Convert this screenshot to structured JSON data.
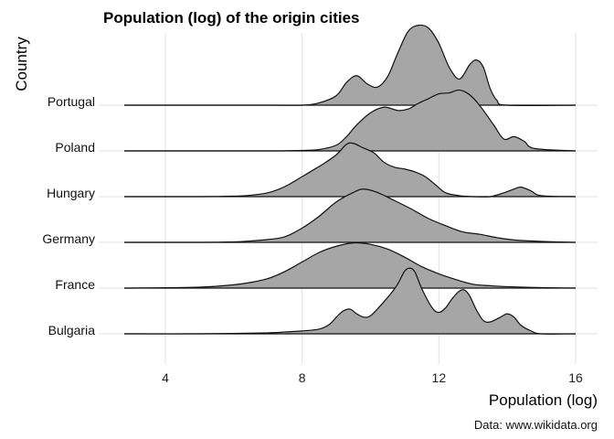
{
  "chart_data": {
    "type": "area",
    "subtype": "ridgeline",
    "title": "Population (log) of the origin cities",
    "xlabel": "Population (log)",
    "ylabel": "Country",
    "caption": "Data: www.wikidata.org",
    "xlim": [
      2.5,
      16.5
    ],
    "x_ticks": [
      4,
      8,
      12,
      16
    ],
    "fill_color": "#a6a6a6",
    "line_color": "#111111",
    "grid": true,
    "categories": [
      "Bulgaria",
      "France",
      "Germany",
      "Hungary",
      "Poland",
      "Portugal"
    ],
    "series": [
      {
        "name": "Bulgaria",
        "x": [
          2.8,
          5.0,
          7.0,
          7.5,
          8.0,
          8.5,
          8.8,
          9.0,
          9.2,
          9.4,
          9.6,
          9.8,
          10.0,
          10.3,
          10.6,
          10.8,
          11.0,
          11.15,
          11.3,
          11.5,
          11.8,
          12.0,
          12.2,
          12.4,
          12.6,
          12.75,
          12.9,
          13.1,
          13.3,
          13.5,
          13.8,
          14.0,
          14.2,
          14.4,
          14.7,
          15.0,
          16.0
        ],
        "values": [
          0.0,
          0.0,
          0.02,
          0.04,
          0.06,
          0.1,
          0.2,
          0.35,
          0.48,
          0.52,
          0.42,
          0.35,
          0.38,
          0.6,
          0.85,
          1.05,
          1.32,
          1.38,
          1.3,
          0.95,
          0.55,
          0.45,
          0.55,
          0.75,
          0.9,
          0.92,
          0.8,
          0.5,
          0.28,
          0.25,
          0.35,
          0.42,
          0.35,
          0.18,
          0.06,
          0.0,
          0.0
        ]
      },
      {
        "name": "France",
        "x": [
          2.8,
          5.0,
          6.0,
          6.5,
          7.0,
          7.5,
          8.0,
          8.5,
          9.0,
          9.5,
          10.0,
          10.5,
          11.0,
          11.5,
          12.0,
          12.5,
          13.0,
          13.5,
          14.0,
          15.0,
          16.0
        ],
        "values": [
          0.0,
          0.02,
          0.07,
          0.12,
          0.2,
          0.35,
          0.55,
          0.75,
          0.88,
          0.95,
          0.92,
          0.82,
          0.65,
          0.45,
          0.3,
          0.18,
          0.08,
          0.05,
          0.03,
          0.01,
          0.0
        ]
      },
      {
        "name": "Germany",
        "x": [
          2.8,
          5.0,
          6.0,
          6.5,
          7.0,
          7.5,
          8.0,
          8.5,
          9.0,
          9.5,
          9.8,
          10.2,
          10.7,
          11.2,
          11.7,
          12.2,
          12.7,
          13.2,
          13.7,
          14.2,
          15.0,
          16.0
        ],
        "values": [
          0.0,
          0.0,
          0.01,
          0.03,
          0.06,
          0.12,
          0.3,
          0.55,
          0.85,
          1.05,
          1.12,
          1.05,
          0.88,
          0.7,
          0.5,
          0.35,
          0.22,
          0.17,
          0.1,
          0.05,
          0.02,
          0.0
        ]
      },
      {
        "name": "Hungary",
        "x": [
          2.8,
          5.0,
          6.0,
          6.5,
          7.0,
          7.3,
          7.6,
          8.0,
          8.3,
          8.6,
          9.0,
          9.3,
          9.5,
          9.8,
          10.1,
          10.4,
          10.7,
          11.0,
          11.3,
          11.6,
          11.9,
          12.2,
          12.6,
          13.0,
          13.5,
          13.9,
          14.2,
          14.4,
          14.7,
          15.0,
          16.0
        ],
        "values": [
          0.0,
          0.0,
          0.01,
          0.03,
          0.08,
          0.15,
          0.25,
          0.42,
          0.55,
          0.68,
          0.88,
          1.1,
          1.12,
          1.02,
          0.92,
          0.72,
          0.62,
          0.58,
          0.52,
          0.42,
          0.25,
          0.08,
          0.02,
          0.0,
          0.0,
          0.08,
          0.16,
          0.2,
          0.12,
          0.02,
          0.0
        ]
      },
      {
        "name": "Poland",
        "x": [
          2.8,
          5.0,
          7.0,
          8.0,
          8.5,
          9.0,
          9.3,
          9.6,
          10.0,
          10.4,
          10.8,
          11.1,
          11.4,
          11.7,
          12.0,
          12.3,
          12.6,
          12.9,
          13.2,
          13.6,
          13.9,
          14.2,
          14.5,
          14.8,
          16.0
        ],
        "values": [
          0.0,
          0.0,
          0.0,
          0.01,
          0.03,
          0.12,
          0.3,
          0.55,
          0.8,
          0.92,
          0.85,
          0.88,
          1.0,
          1.1,
          1.2,
          1.22,
          1.28,
          1.18,
          0.95,
          0.55,
          0.25,
          0.3,
          0.2,
          0.05,
          0.0
        ]
      },
      {
        "name": "Portugal",
        "x": [
          2.8,
          7.0,
          8.0,
          8.5,
          9.0,
          9.3,
          9.6,
          9.9,
          10.2,
          10.5,
          10.8,
          11.1,
          11.4,
          11.7,
          12.0,
          12.3,
          12.6,
          12.9,
          13.1,
          13.3,
          13.5,
          13.7,
          14.0,
          16.0
        ],
        "values": [
          0.0,
          0.0,
          0.0,
          0.05,
          0.2,
          0.48,
          0.62,
          0.45,
          0.38,
          0.6,
          1.1,
          1.55,
          1.68,
          1.62,
          1.3,
          0.8,
          0.55,
          0.85,
          0.95,
          0.8,
          0.35,
          0.1,
          0.0,
          0.0
        ]
      }
    ]
  }
}
